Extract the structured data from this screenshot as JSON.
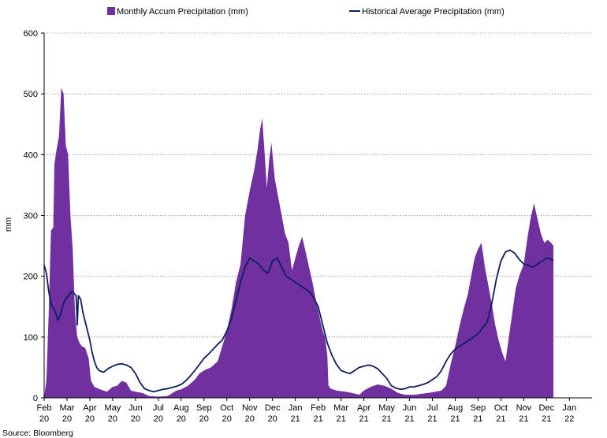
{
  "chart_data": {
    "type": "area",
    "title": "",
    "xlabel": "",
    "ylabel": "mm",
    "ylim": [
      0,
      600
    ],
    "yticks": [
      0,
      100,
      200,
      300,
      400,
      500,
      600
    ],
    "grid": "horizontal dotted",
    "legend_position": "top",
    "x_ticks": [
      {
        "m": "Feb",
        "y": "20"
      },
      {
        "m": "Mar",
        "y": "20"
      },
      {
        "m": "Apr",
        "y": "20"
      },
      {
        "m": "May",
        "y": "20"
      },
      {
        "m": "Jun",
        "y": "20"
      },
      {
        "m": "Jul",
        "y": "20"
      },
      {
        "m": "Aug",
        "y": "20"
      },
      {
        "m": "Sep",
        "y": "20"
      },
      {
        "m": "Oct",
        "y": "20"
      },
      {
        "m": "Nov",
        "y": "20"
      },
      {
        "m": "Dec",
        "y": "20"
      },
      {
        "m": "Jan",
        "y": "21"
      },
      {
        "m": "Feb",
        "y": "21"
      },
      {
        "m": "Mar",
        "y": "21"
      },
      {
        "m": "Apr",
        "y": "21"
      },
      {
        "m": "May",
        "y": "21"
      },
      {
        "m": "Jun",
        "y": "21"
      },
      {
        "m": "Jul",
        "y": "21"
      },
      {
        "m": "Aug",
        "y": "21"
      },
      {
        "m": "Sep",
        "y": "21"
      },
      {
        "m": "Oct",
        "y": "21"
      },
      {
        "m": "Nov",
        "y": "21"
      },
      {
        "m": "Dec",
        "y": "21"
      },
      {
        "m": "Jan",
        "y": "22"
      }
    ],
    "series": [
      {
        "name": "Monthly Accum Precipitation (mm)",
        "kind": "area",
        "color": "#7030a0",
        "points": [
          [
            0.0,
            0
          ],
          [
            0.1,
            30
          ],
          [
            0.2,
            140
          ],
          [
            0.3,
            275
          ],
          [
            0.4,
            280
          ],
          [
            0.45,
            385
          ],
          [
            0.55,
            410
          ],
          [
            0.65,
            430
          ],
          [
            0.75,
            510
          ],
          [
            0.85,
            500
          ],
          [
            0.95,
            415
          ],
          [
            1.05,
            400
          ],
          [
            1.15,
            300
          ],
          [
            1.25,
            245
          ],
          [
            1.35,
            140
          ],
          [
            1.45,
            100
          ],
          [
            1.55,
            90
          ],
          [
            1.65,
            85
          ],
          [
            1.8,
            82
          ],
          [
            1.95,
            65
          ],
          [
            2.05,
            28
          ],
          [
            2.2,
            18
          ],
          [
            2.45,
            14
          ],
          [
            2.6,
            12
          ],
          [
            2.75,
            10
          ],
          [
            3.0,
            18
          ],
          [
            3.2,
            20
          ],
          [
            3.4,
            28
          ],
          [
            3.6,
            25
          ],
          [
            3.8,
            12
          ],
          [
            4.0,
            10
          ],
          [
            4.3,
            8
          ],
          [
            4.6,
            3
          ],
          [
            5.0,
            2
          ],
          [
            5.4,
            3
          ],
          [
            5.8,
            12
          ],
          [
            6.0,
            14
          ],
          [
            6.3,
            20
          ],
          [
            6.6,
            30
          ],
          [
            6.8,
            40
          ],
          [
            7.0,
            45
          ],
          [
            7.3,
            50
          ],
          [
            7.6,
            60
          ],
          [
            7.8,
            85
          ],
          [
            8.0,
            110
          ],
          [
            8.2,
            145
          ],
          [
            8.4,
            190
          ],
          [
            8.6,
            220
          ],
          [
            8.8,
            300
          ],
          [
            9.0,
            340
          ],
          [
            9.2,
            375
          ],
          [
            9.35,
            410
          ],
          [
            9.45,
            440
          ],
          [
            9.55,
            460
          ],
          [
            9.65,
            405
          ],
          [
            9.75,
            345
          ],
          [
            9.85,
            390
          ],
          [
            9.95,
            420
          ],
          [
            10.1,
            360
          ],
          [
            10.25,
            330
          ],
          [
            10.4,
            300
          ],
          [
            10.55,
            270
          ],
          [
            10.7,
            255
          ],
          [
            10.85,
            210
          ],
          [
            11.0,
            230
          ],
          [
            11.15,
            250
          ],
          [
            11.3,
            265
          ],
          [
            11.45,
            240
          ],
          [
            11.6,
            215
          ],
          [
            11.75,
            190
          ],
          [
            11.9,
            160
          ],
          [
            12.05,
            135
          ],
          [
            12.2,
            110
          ],
          [
            12.3,
            100
          ],
          [
            12.4,
            70
          ],
          [
            12.45,
            20
          ],
          [
            12.55,
            15
          ],
          [
            12.8,
            12
          ],
          [
            13.2,
            10
          ],
          [
            13.5,
            8
          ],
          [
            13.8,
            5
          ],
          [
            14.0,
            12
          ],
          [
            14.3,
            18
          ],
          [
            14.6,
            22
          ],
          [
            14.9,
            20
          ],
          [
            15.2,
            15
          ],
          [
            15.5,
            8
          ],
          [
            15.8,
            5
          ],
          [
            16.2,
            5
          ],
          [
            16.6,
            7
          ],
          [
            17.0,
            9
          ],
          [
            17.4,
            12
          ],
          [
            17.6,
            20
          ],
          [
            17.8,
            55
          ],
          [
            18.0,
            85
          ],
          [
            18.2,
            120
          ],
          [
            18.4,
            150
          ],
          [
            18.55,
            170
          ],
          [
            18.7,
            200
          ],
          [
            18.85,
            230
          ],
          [
            19.0,
            245
          ],
          [
            19.15,
            255
          ],
          [
            19.3,
            215
          ],
          [
            19.45,
            185
          ],
          [
            19.6,
            155
          ],
          [
            19.75,
            120
          ],
          [
            19.9,
            95
          ],
          [
            20.05,
            75
          ],
          [
            20.2,
            60
          ],
          [
            20.35,
            100
          ],
          [
            20.5,
            140
          ],
          [
            20.65,
            180
          ],
          [
            20.8,
            200
          ],
          [
            21.0,
            220
          ],
          [
            21.15,
            260
          ],
          [
            21.3,
            295
          ],
          [
            21.45,
            320
          ],
          [
            21.6,
            295
          ],
          [
            21.75,
            270
          ],
          [
            21.9,
            255
          ],
          [
            22.05,
            260
          ],
          [
            22.2,
            255
          ],
          [
            22.3,
            250
          ]
        ]
      },
      {
        "name": "Historical Average Precipitation (mm)",
        "kind": "line",
        "color": "#0d1f5c",
        "points": [
          [
            0.0,
            218
          ],
          [
            0.1,
            205
          ],
          [
            0.2,
            175
          ],
          [
            0.3,
            155
          ],
          [
            0.4,
            148
          ],
          [
            0.5,
            140
          ],
          [
            0.6,
            128
          ],
          [
            0.7,
            135
          ],
          [
            0.8,
            150
          ],
          [
            0.9,
            160
          ],
          [
            1.0,
            165
          ],
          [
            1.1,
            170
          ],
          [
            1.2,
            175
          ],
          [
            1.3,
            172
          ],
          [
            1.4,
            168
          ],
          [
            1.45,
            120
          ],
          [
            1.5,
            168
          ],
          [
            1.6,
            162
          ],
          [
            1.7,
            140
          ],
          [
            1.8,
            125
          ],
          [
            1.9,
            110
          ],
          [
            2.0,
            95
          ],
          [
            2.1,
            75
          ],
          [
            2.2,
            60
          ],
          [
            2.3,
            50
          ],
          [
            2.4,
            45
          ],
          [
            2.6,
            42
          ],
          [
            2.8,
            48
          ],
          [
            3.0,
            52
          ],
          [
            3.2,
            55
          ],
          [
            3.4,
            56
          ],
          [
            3.6,
            54
          ],
          [
            3.8,
            50
          ],
          [
            4.0,
            40
          ],
          [
            4.2,
            25
          ],
          [
            4.4,
            15
          ],
          [
            4.6,
            12
          ],
          [
            4.8,
            10
          ],
          [
            5.0,
            12
          ],
          [
            5.2,
            14
          ],
          [
            5.4,
            15
          ],
          [
            5.6,
            17
          ],
          [
            5.8,
            19
          ],
          [
            6.0,
            22
          ],
          [
            6.2,
            28
          ],
          [
            6.4,
            36
          ],
          [
            6.6,
            45
          ],
          [
            6.8,
            55
          ],
          [
            7.0,
            65
          ],
          [
            7.2,
            72
          ],
          [
            7.4,
            80
          ],
          [
            7.6,
            88
          ],
          [
            7.8,
            95
          ],
          [
            8.0,
            110
          ],
          [
            8.2,
            130
          ],
          [
            8.4,
            160
          ],
          [
            8.6,
            190
          ],
          [
            8.8,
            215
          ],
          [
            9.0,
            230
          ],
          [
            9.2,
            225
          ],
          [
            9.4,
            220
          ],
          [
            9.6,
            210
          ],
          [
            9.8,
            205
          ],
          [
            10.0,
            225
          ],
          [
            10.2,
            230
          ],
          [
            10.4,
            215
          ],
          [
            10.6,
            200
          ],
          [
            10.8,
            195
          ],
          [
            11.0,
            190
          ],
          [
            11.2,
            185
          ],
          [
            11.4,
            180
          ],
          [
            11.6,
            175
          ],
          [
            11.8,
            165
          ],
          [
            12.0,
            150
          ],
          [
            12.2,
            120
          ],
          [
            12.4,
            90
          ],
          [
            12.6,
            70
          ],
          [
            12.8,
            55
          ],
          [
            13.0,
            45
          ],
          [
            13.2,
            42
          ],
          [
            13.4,
            40
          ],
          [
            13.6,
            45
          ],
          [
            13.8,
            50
          ],
          [
            14.0,
            52
          ],
          [
            14.2,
            54
          ],
          [
            14.4,
            52
          ],
          [
            14.6,
            48
          ],
          [
            14.8,
            40
          ],
          [
            15.0,
            32
          ],
          [
            15.2,
            20
          ],
          [
            15.4,
            16
          ],
          [
            15.6,
            14
          ],
          [
            15.8,
            15
          ],
          [
            16.0,
            18
          ],
          [
            16.2,
            18
          ],
          [
            16.4,
            20
          ],
          [
            16.6,
            22
          ],
          [
            16.8,
            25
          ],
          [
            17.0,
            30
          ],
          [
            17.2,
            35
          ],
          [
            17.4,
            45
          ],
          [
            17.6,
            60
          ],
          [
            17.8,
            72
          ],
          [
            18.0,
            80
          ],
          [
            18.2,
            85
          ],
          [
            18.4,
            90
          ],
          [
            18.6,
            95
          ],
          [
            18.8,
            100
          ],
          [
            19.0,
            105
          ],
          [
            19.2,
            115
          ],
          [
            19.4,
            125
          ],
          [
            19.6,
            155
          ],
          [
            19.8,
            195
          ],
          [
            20.0,
            225
          ],
          [
            20.2,
            240
          ],
          [
            20.4,
            243
          ],
          [
            20.6,
            238
          ],
          [
            20.8,
            228
          ],
          [
            21.0,
            220
          ],
          [
            21.2,
            218
          ],
          [
            21.4,
            215
          ],
          [
            21.6,
            220
          ],
          [
            21.8,
            225
          ],
          [
            22.0,
            230
          ],
          [
            22.2,
            228
          ],
          [
            22.3,
            225
          ]
        ]
      }
    ]
  },
  "source": "Source: Bloomberg"
}
